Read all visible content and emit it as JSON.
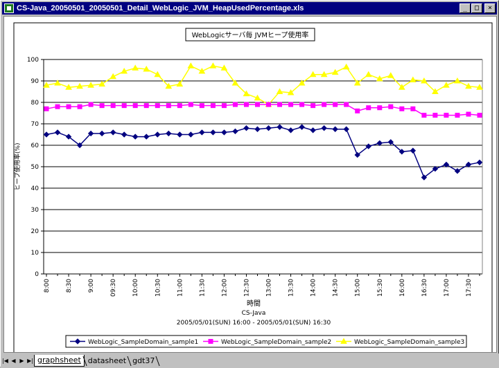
{
  "window": {
    "title": "CS-Java_20050501_20050501_Detail_WebLogic_JVM_HeapUsedPercentage.xls",
    "controls": [
      "_",
      "□",
      "×"
    ]
  },
  "tabs": [
    {
      "label": "graphsheet",
      "active": true
    },
    {
      "label": "datasheet",
      "active": false
    },
    {
      "label": "gdt37",
      "active": false
    }
  ],
  "chart_data": {
    "type": "line",
    "title": "WebLogicサーバ毎 JVMヒープ使用率",
    "ylabel": "ヒープ使用率(%)",
    "xlabel": "時間",
    "subtitle_lines": [
      "CS-Java",
      "2005/05/01(SUN) 16:00 - 2005/05/01(SUN) 16:30"
    ],
    "ylim": [
      0,
      100
    ],
    "yticks": [
      0,
      10,
      20,
      30,
      40,
      50,
      60,
      70,
      80,
      90,
      100
    ],
    "grid": true,
    "legend_position": "bottom",
    "x_tick_labels": [
      "8:00",
      "8:30",
      "9:00",
      "09:30",
      "10:00",
      "10:30",
      "11:00",
      "11:30",
      "12:00",
      "12:30",
      "13:00",
      "13:30",
      "14:00",
      "14:30",
      "15:00",
      "15:30",
      "16:00",
      "16:30",
      "17:00",
      "17:30"
    ],
    "series": [
      {
        "name": "WebLogic_SampleDomain_sample1",
        "color": "#000080",
        "marker": "diamond",
        "values": [
          65,
          66,
          64,
          60,
          65.5,
          65.5,
          66,
          65,
          64,
          64,
          65,
          65.5,
          65,
          65,
          66,
          66,
          66,
          66.5,
          68,
          67.5,
          68,
          68.5,
          67,
          68.5,
          67,
          68,
          67.5,
          67.5,
          55.5,
          59.5,
          61,
          61.5,
          57,
          57.5,
          45,
          49,
          51,
          48,
          51,
          52
        ]
      },
      {
        "name": "WebLogic_SampleDomain_sample2",
        "color": "#ff00ff",
        "marker": "square",
        "values": [
          77,
          78,
          78,
          78,
          79,
          78.5,
          78.5,
          78.5,
          78.5,
          78.5,
          78.5,
          78.5,
          78.5,
          79,
          78.5,
          78.5,
          78.5,
          79,
          79,
          79,
          79,
          79,
          79,
          79,
          78.5,
          79,
          79,
          79,
          76,
          77.5,
          77.5,
          78,
          77,
          77,
          74,
          74,
          74,
          74,
          74.5,
          74
        ]
      },
      {
        "name": "WebLogic_SampleDomain_sample3",
        "color": "#ffff00",
        "marker": "triangle",
        "values": [
          88,
          89,
          87,
          87.5,
          88,
          88.5,
          92,
          94.5,
          96,
          95.5,
          93,
          87.5,
          88.5,
          97,
          94.5,
          97,
          96,
          89,
          84,
          82,
          79,
          85,
          84.5,
          89,
          93,
          93,
          94,
          96.5,
          89,
          93,
          91,
          92.5,
          87,
          90.5,
          90,
          85,
          88,
          90,
          87.5,
          87
        ]
      }
    ]
  }
}
